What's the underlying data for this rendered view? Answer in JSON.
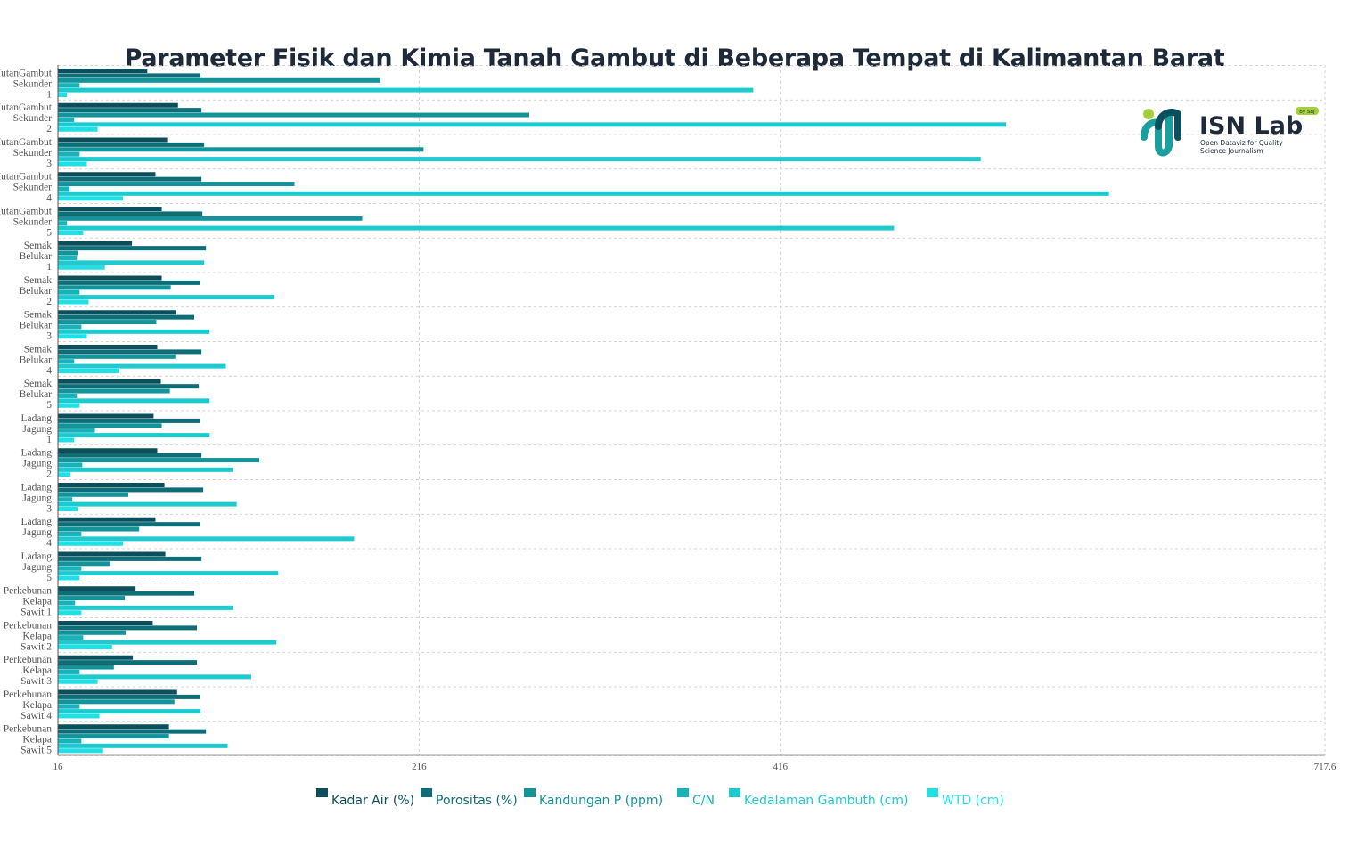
{
  "chart_data": {
    "type": "bar",
    "orientation": "horizontal",
    "title": "Parameter Fisik dan Kimia Tanah Gambut di Beberapa Tempat di Kalimantan Barat",
    "xlim": [
      16,
      717.6
    ],
    "xticks": [
      "16",
      "216",
      "416",
      "717.6"
    ],
    "grid": true,
    "legend_position": "bottom",
    "categories": [
      [
        "HutanGambut",
        "Sekunder",
        "1"
      ],
      [
        "HutanGambut",
        "Sekunder",
        "2"
      ],
      [
        "HutanGambut",
        "Sekunder",
        "3"
      ],
      [
        "HutanGambut",
        "Sekunder",
        "4"
      ],
      [
        "HutanGambut",
        "Sekunder",
        "5"
      ],
      [
        "Semak",
        "Belukar",
        "1"
      ],
      [
        "Semak",
        "Belukar",
        "2"
      ],
      [
        "Semak",
        "Belukar",
        "3"
      ],
      [
        "Semak",
        "Belukar",
        "4"
      ],
      [
        "Semak",
        "Belukar",
        "5"
      ],
      [
        "Ladang",
        "Jagung",
        "1"
      ],
      [
        "Ladang",
        "Jagung",
        "2"
      ],
      [
        "Ladang",
        "Jagung",
        "3"
      ],
      [
        "Ladang",
        "Jagung",
        "4"
      ],
      [
        "Ladang",
        "Jagung",
        "5"
      ],
      [
        "Perkebunan",
        "Kelapa",
        "Sawit 1"
      ],
      [
        "Perkebunan",
        "Kelapa",
        "Sawit 2"
      ],
      [
        "Perkebunan",
        "Kelapa",
        "Sawit 3"
      ],
      [
        "Perkebunan",
        "Kelapa",
        "Sawit 4"
      ],
      [
        "Perkebunan",
        "Kelapa",
        "Sawit 5"
      ]
    ],
    "series": [
      {
        "name": "Kadar Air (%)",
        "color": "#0b4f5c",
        "values": [
          65.5,
          82.5,
          76.5,
          70,
          73.5,
          57,
          73.5,
          81.5,
          71,
          73,
          69,
          71,
          75,
          70,
          75.5,
          59,
          68.5,
          57.5,
          82,
          77.5
        ]
      },
      {
        "name": "Porositas (%)",
        "color": "#0e6e78",
        "values": [
          95,
          95.5,
          97,
          95.5,
          96,
          98,
          94.5,
          91.5,
          95.5,
          94,
          94.5,
          95.5,
          96.5,
          94.5,
          95.5,
          91.5,
          93,
          93,
          94.5,
          98
        ]
      },
      {
        "name": "Kandungan P (ppm)",
        "color": "#12949a",
        "values": [
          194.5,
          277,
          218.5,
          147,
          184.5,
          27,
          78.5,
          70.5,
          81,
          78,
          73.5,
          127.5,
          55,
          61,
          45,
          53,
          53.5,
          47,
          80.5,
          77.5
        ]
      },
      {
        "name": "C/N",
        "color": "#18b2b8",
        "values": [
          28,
          25,
          28,
          22.5,
          21,
          26.5,
          28,
          29,
          25,
          26.5,
          36.5,
          29.5,
          24,
          29,
          29,
          25.5,
          30,
          28,
          28,
          29
        ]
      },
      {
        "name": "Kedalaman Gambuth (cm)",
        "color": "#1ccad0",
        "values": [
          401,
          541,
          527,
          598,
          479,
          97,
          136,
          100,
          109,
          100,
          100,
          113,
          115,
          180,
          138,
          113,
          137,
          123,
          95,
          110
        ]
      },
      {
        "name": "WTD (cm)",
        "color": "#20e0e6",
        "values": [
          21,
          38,
          32,
          52,
          30,
          42,
          33,
          32,
          50,
          28,
          25,
          23,
          27,
          52,
          28,
          29,
          46,
          38,
          39,
          41
        ]
      }
    ]
  },
  "logo": {
    "name": "ISN Lab",
    "tagline_1": "Open Dataviz for Quality",
    "tagline_2": "Science Journalism",
    "badge": "by SBJ"
  }
}
